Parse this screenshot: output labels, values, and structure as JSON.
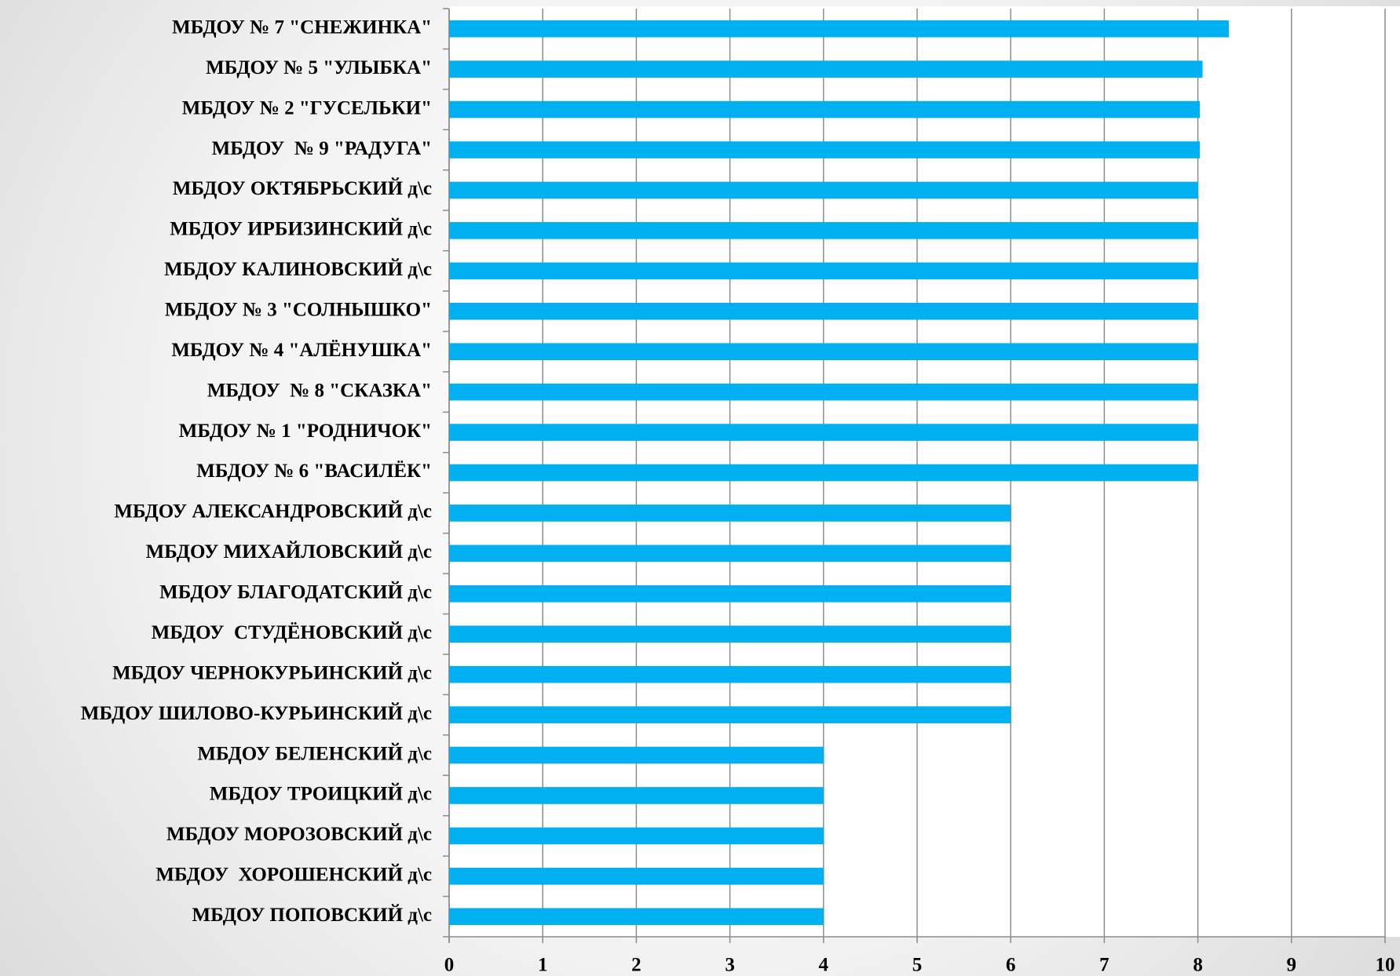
{
  "chart_data": {
    "type": "bar",
    "orientation": "horizontal",
    "categories": [
      "МБДОУ № 7 \"СНЕЖИНКА\"",
      "МБДОУ № 5 \"УЛЫБКА\"",
      "МБДОУ № 2 \"ГУСЕЛЬКИ\"",
      "МБДОУ  № 9 \"РАДУГА\"",
      "МБДОУ ОКТЯБРЬСКИЙ д\\с",
      "МБДОУ ИРБИЗИНСКИЙ д\\с",
      "МБДОУ КАЛИНОВСКИЙ д\\с",
      "МБДОУ № 3 \"СОЛНЫШКО\"",
      "МБДОУ № 4 \"АЛЁНУШКА\"",
      "МБДОУ  № 8 \"СКАЗКА\"",
      "МБДОУ № 1 \"РОДНИЧОК\"",
      "МБДОУ № 6 \"ВАСИЛЁК\"",
      "МБДОУ АЛЕКСАНДРОВСКИЙ д\\с",
      "МБДОУ МИХАЙЛОВСКИЙ д\\с",
      "МБДОУ БЛАГОДАТСКИЙ д\\с",
      "МБДОУ  СТУДЁНОВСКИЙ д\\с",
      "МБДОУ ЧЕРНОКУРЬИНСКИЙ д\\с",
      "МБДОУ ШИЛОВО-КУРЬИНСКИЙ д\\с",
      "МБДОУ БЕЛЕНСКИЙ д\\с",
      "МБДОУ ТРОИЦКИЙ д\\с",
      "МБДОУ МОРОЗОВСКИЙ д\\с",
      "МБДОУ  ХОРОШЕНСКИЙ д\\с",
      "МБДОУ ПОПОВСКИЙ д\\с"
    ],
    "values": [
      8.33,
      8.05,
      8.02,
      8.02,
      8,
      8,
      8,
      8,
      8,
      8,
      8,
      8,
      6,
      6,
      6,
      6,
      6,
      6,
      4,
      4,
      4,
      4,
      4
    ],
    "color": "#00b0f0",
    "xlim": [
      0,
      10
    ],
    "xticks": [
      0,
      1,
      2,
      3,
      4,
      5,
      6,
      7,
      8,
      9,
      10
    ],
    "grid": true
  }
}
